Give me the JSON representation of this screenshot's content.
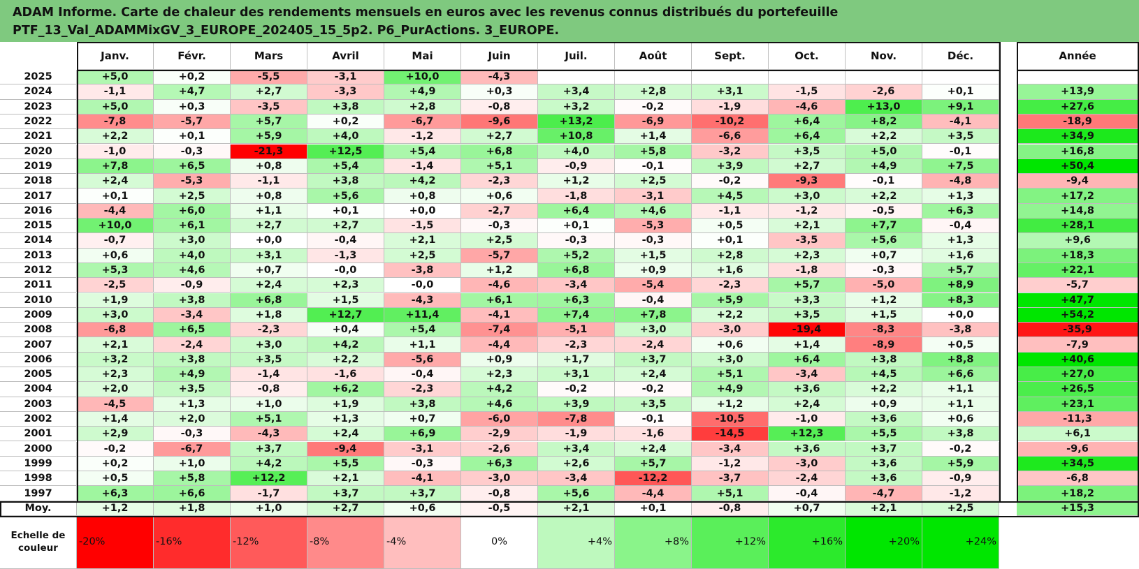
{
  "title_line1": "ADAM Informe. Carte de chaleur des rendements mensuels en euros avec les revenus connus distribués du portefeuille",
  "title_line2": "PTF_13_Val_ADAMMixGV_3_EUROPE_202405_15_5p2. P6_PurActions. 3_EUROPE.",
  "chart_data": {
    "type": "heatmap",
    "columns": [
      "Janv.",
      "Févr.",
      "Mars",
      "Avril",
      "Mai",
      "Juin",
      "Juil.",
      "Août",
      "Sept.",
      "Oct.",
      "Nov.",
      "Déc."
    ],
    "year_column": "Année",
    "rows": [
      {
        "year": "2025",
        "values": [
          "+5,0",
          "+0,2",
          "-5,5",
          "-3,1",
          "+10,0",
          "-4,3",
          "",
          "",
          "",
          "",
          "",
          ""
        ],
        "annual": ""
      },
      {
        "year": "2024",
        "values": [
          "-1,1",
          "+4,7",
          "+2,7",
          "-3,3",
          "+4,9",
          "+0,3",
          "+3,4",
          "+2,8",
          "+3,1",
          "-1,5",
          "-2,6",
          "+0,1"
        ],
        "annual": "+13,9"
      },
      {
        "year": "2023",
        "values": [
          "+5,0",
          "+0,3",
          "-3,5",
          "+3,8",
          "+2,8",
          "-0,8",
          "+3,2",
          "-0,2",
          "-1,9",
          "-4,6",
          "+13,0",
          "+9,1"
        ],
        "annual": "+27,6"
      },
      {
        "year": "2022",
        "values": [
          "-7,8",
          "-5,7",
          "+5,7",
          "+0,2",
          "-6,7",
          "-9,6",
          "+13,2",
          "-6,9",
          "-10,2",
          "+6,4",
          "+8,2",
          "-4,1"
        ],
        "annual": "-18,9"
      },
      {
        "year": "2021",
        "values": [
          "+2,2",
          "+0,1",
          "+5,9",
          "+4,0",
          "-1,2",
          "+2,7",
          "+10,8",
          "+1,4",
          "-6,6",
          "+6,4",
          "+2,2",
          "+3,5"
        ],
        "annual": "+34,9"
      },
      {
        "year": "2020",
        "values": [
          "-1,0",
          "-0,3",
          "-21,3",
          "+12,5",
          "+5,4",
          "+6,8",
          "+4,0",
          "+5,8",
          "-3,2",
          "+3,5",
          "+5,0",
          "-0,1"
        ],
        "annual": "+16,8"
      },
      {
        "year": "2019",
        "values": [
          "+7,8",
          "+6,5",
          "+0,8",
          "+5,4",
          "-1,4",
          "+5,1",
          "-0,9",
          "-0,1",
          "+3,9",
          "+2,7",
          "+4,9",
          "+7,5"
        ],
        "annual": "+50,4"
      },
      {
        "year": "2018",
        "values": [
          "+2,4",
          "-5,3",
          "-1,1",
          "+3,8",
          "+4,2",
          "-2,3",
          "+1,2",
          "+2,5",
          "-0,2",
          "-9,3",
          "-0,1",
          "-4,8"
        ],
        "annual": "-9,4"
      },
      {
        "year": "2017",
        "values": [
          "+0,1",
          "+2,5",
          "+0,8",
          "+5,6",
          "+0,8",
          "+0,6",
          "-1,8",
          "-3,1",
          "+4,5",
          "+3,0",
          "+2,2",
          "+1,3"
        ],
        "annual": "+17,2"
      },
      {
        "year": "2016",
        "values": [
          "-4,4",
          "+6,0",
          "+1,1",
          "+0,1",
          "+0,0",
          "-2,7",
          "+6,4",
          "+4,6",
          "-1,1",
          "-1,2",
          "-0,5",
          "+6,3"
        ],
        "annual": "+14,8"
      },
      {
        "year": "2015",
        "values": [
          "+10,0",
          "+6,1",
          "+2,7",
          "+2,7",
          "-1,5",
          "-0,3",
          "+0,1",
          "-5,3",
          "+0,5",
          "+2,1",
          "+7,7",
          "-0,4"
        ],
        "annual": "+28,1"
      },
      {
        "year": "2014",
        "values": [
          "-0,7",
          "+3,0",
          "+0,0",
          "-0,4",
          "+2,1",
          "+2,5",
          "-0,3",
          "-0,3",
          "+0,1",
          "-3,5",
          "+5,6",
          "+1,3"
        ],
        "annual": "+9,6"
      },
      {
        "year": "2013",
        "values": [
          "+0,6",
          "+4,0",
          "+3,1",
          "-1,3",
          "+2,5",
          "-5,7",
          "+5,2",
          "+1,5",
          "+2,8",
          "+2,3",
          "+0,7",
          "+1,6"
        ],
        "annual": "+18,3"
      },
      {
        "year": "2012",
        "values": [
          "+5,3",
          "+4,6",
          "+0,7",
          "-0,0",
          "-3,8",
          "+1,2",
          "+6,8",
          "+0,9",
          "+1,6",
          "-1,8",
          "-0,3",
          "+5,7"
        ],
        "annual": "+22,1"
      },
      {
        "year": "2011",
        "values": [
          "-2,5",
          "-0,9",
          "+2,4",
          "+2,3",
          "-0,0",
          "-4,6",
          "-3,4",
          "-5,4",
          "-2,3",
          "+5,7",
          "-5,0",
          "+8,9"
        ],
        "annual": "-5,7"
      },
      {
        "year": "2010",
        "values": [
          "+1,9",
          "+3,8",
          "+6,8",
          "+1,5",
          "-4,3",
          "+6,1",
          "+6,3",
          "-0,4",
          "+5,9",
          "+3,3",
          "+1,2",
          "+8,3"
        ],
        "annual": "+47,7"
      },
      {
        "year": "2009",
        "values": [
          "+3,0",
          "-3,4",
          "+1,8",
          "+12,7",
          "+11,4",
          "-4,1",
          "+7,4",
          "+7,8",
          "+2,2",
          "+3,5",
          "+1,5",
          "+0,0"
        ],
        "annual": "+54,2"
      },
      {
        "year": "2008",
        "values": [
          "-6,8",
          "+6,5",
          "-2,3",
          "+0,4",
          "+5,4",
          "-7,4",
          "-5,1",
          "+3,0",
          "-3,0",
          "-19,4",
          "-8,3",
          "-3,8"
        ],
        "annual": "-35,9"
      },
      {
        "year": "2007",
        "values": [
          "+2,1",
          "-2,4",
          "+3,0",
          "+4,2",
          "+1,1",
          "-4,4",
          "-2,3",
          "-2,4",
          "+0,6",
          "+1,4",
          "-8,9",
          "+0,5"
        ],
        "annual": "-7,9"
      },
      {
        "year": "2006",
        "values": [
          "+3,2",
          "+3,8",
          "+3,5",
          "+2,2",
          "-5,6",
          "+0,9",
          "+1,7",
          "+3,7",
          "+3,0",
          "+6,4",
          "+3,8",
          "+8,8"
        ],
        "annual": "+40,6"
      },
      {
        "year": "2005",
        "values": [
          "+2,3",
          "+4,9",
          "-1,4",
          "-1,6",
          "-0,4",
          "+2,3",
          "+3,1",
          "+2,4",
          "+5,1",
          "-3,4",
          "+4,5",
          "+6,6"
        ],
        "annual": "+27,0"
      },
      {
        "year": "2004",
        "values": [
          "+2,0",
          "+3,5",
          "-0,8",
          "+6,2",
          "-2,3",
          "+4,2",
          "-0,2",
          "-0,2",
          "+4,9",
          "+3,6",
          "+2,2",
          "+1,1"
        ],
        "annual": "+26,5"
      },
      {
        "year": "2003",
        "values": [
          "-4,5",
          "+1,3",
          "+1,0",
          "+1,9",
          "+3,8",
          "+4,6",
          "+3,9",
          "+3,5",
          "+1,2",
          "+2,4",
          "+0,9",
          "+1,1"
        ],
        "annual": "+23,1"
      },
      {
        "year": "2002",
        "values": [
          "+1,4",
          "+2,0",
          "+5,1",
          "+1,3",
          "+0,7",
          "-6,0",
          "-7,8",
          "-0,1",
          "-10,5",
          "-1,0",
          "+3,6",
          "+0,6"
        ],
        "annual": "-11,3"
      },
      {
        "year": "2001",
        "values": [
          "+2,9",
          "-0,3",
          "-4,3",
          "+2,4",
          "+6,9",
          "-2,9",
          "-1,9",
          "-1,6",
          "-14,5",
          "+12,3",
          "+5,5",
          "+3,8"
        ],
        "annual": "+6,1"
      },
      {
        "year": "2000",
        "values": [
          "-0,2",
          "-6,7",
          "+3,7",
          "-9,4",
          "-3,1",
          "-2,6",
          "+3,4",
          "+2,4",
          "-3,4",
          "+3,6",
          "+3,7",
          "-0,2"
        ],
        "annual": "-9,6"
      },
      {
        "year": "1999",
        "values": [
          "+0,2",
          "+1,0",
          "+4,2",
          "+5,5",
          "-0,3",
          "+6,3",
          "+2,6",
          "+5,7",
          "-1,2",
          "-3,0",
          "+3,6",
          "+5,9"
        ],
        "annual": "+34,5"
      },
      {
        "year": "1998",
        "values": [
          "+0,5",
          "+5,8",
          "+12,2",
          "+2,1",
          "-4,1",
          "-3,0",
          "-3,4",
          "-12,2",
          "-3,7",
          "-2,4",
          "+3,6",
          "-0,9"
        ],
        "annual": "-6,8"
      },
      {
        "year": "1997",
        "values": [
          "+6,3",
          "+6,6",
          "-1,7",
          "+3,7",
          "+3,7",
          "-0,8",
          "+5,6",
          "-4,4",
          "+5,1",
          "-0,4",
          "-4,7",
          "-1,2"
        ],
        "annual": "+18,2"
      }
    ],
    "average": {
      "label": "Moy.",
      "values": [
        "+1,2",
        "+1,8",
        "+1,0",
        "+2,7",
        "+0,6",
        "-0,5",
        "+2,1",
        "+0,1",
        "-0,8",
        "+0,7",
        "+2,1",
        "+2,5"
      ],
      "annual": "+15,3"
    },
    "color_scale": {
      "label": "Echelle de couleur",
      "steps": [
        "-20%",
        "-16%",
        "-12%",
        "-8%",
        "-4%",
        "0%",
        "+4%",
        "+8%",
        "+12%",
        "+16%",
        "+20%",
        "+24%"
      ],
      "negative_color": "#ff0000",
      "neutral_color": "#ffffff",
      "positive_color": "#00e600"
    }
  }
}
